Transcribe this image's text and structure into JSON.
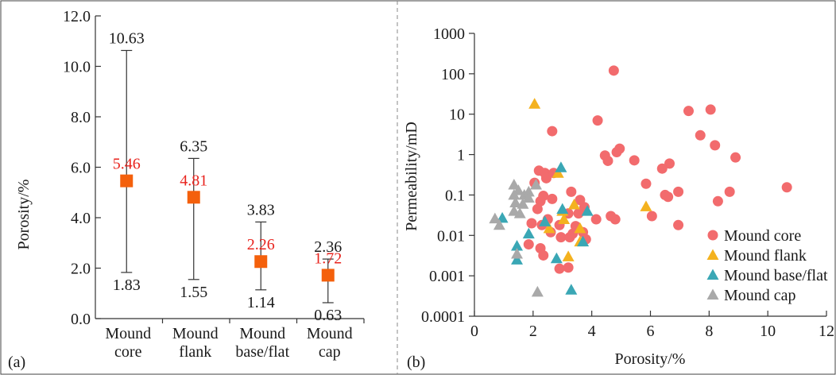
{
  "chart_data": [
    {
      "type": "range",
      "panel_label": "(a)",
      "xlabel": "",
      "ylabel": "Porosity/%",
      "ylim": [
        0,
        12
      ],
      "yticks": [
        "0.0",
        "2.0",
        "4.0",
        "6.0",
        "8.0",
        "10.0",
        "12.0"
      ],
      "categories": [
        {
          "line1": "Mound",
          "line2": "core"
        },
        {
          "line1": "Mound",
          "line2": "flank"
        },
        {
          "line1": "Mound",
          "line2": "base/flat"
        },
        {
          "line1": "Mound",
          "line2": "cap"
        }
      ],
      "max": [
        10.63,
        6.35,
        3.83,
        2.36
      ],
      "mean": [
        5.46,
        4.81,
        2.26,
        1.72
      ],
      "min": [
        1.83,
        1.55,
        1.14,
        0.63
      ],
      "max_labels": [
        "10.63",
        "6.35",
        "3.83",
        "2.36"
      ],
      "mean_labels": [
        "5.46",
        "4.81",
        "2.26",
        "1.72"
      ],
      "min_labels": [
        "1.83",
        "1.55",
        "1.14",
        "0.63"
      ],
      "colors": {
        "marker": "#f4600c",
        "mean_text": "#e8231d",
        "text": "#1a1a1a",
        "axis": "#333333"
      }
    },
    {
      "type": "scatter",
      "panel_label": "(b)",
      "xlabel": "Porosity/%",
      "ylabel": "Permeability/mD",
      "xlim": [
        0,
        12
      ],
      "ylim_log10": [
        -4,
        3
      ],
      "xticks": [
        "0",
        "2",
        "4",
        "6",
        "8",
        "10",
        "12"
      ],
      "yticks": [
        "0.0001",
        "0.001",
        "0.01",
        "0.1",
        "1",
        "10",
        "100",
        "1000"
      ],
      "legend_position": "bottom-right",
      "series": [
        {
          "name": "Mound core",
          "marker": "circle",
          "color": "#f26b6d",
          "points": [
            [
              4.75,
              120
            ],
            [
              2.65,
              3.8
            ],
            [
              4.2,
              7
            ],
            [
              7.3,
              12
            ],
            [
              8.05,
              13
            ],
            [
              7.7,
              3
            ],
            [
              8.2,
              1.7
            ],
            [
              8.9,
              0.85
            ],
            [
              4.95,
              1.4
            ],
            [
              4.85,
              1.15
            ],
            [
              4.45,
              0.95
            ],
            [
              4.55,
              0.7
            ],
            [
              5.45,
              0.72
            ],
            [
              6.65,
              0.6
            ],
            [
              6.4,
              0.45
            ],
            [
              5.85,
              0.19
            ],
            [
              6.5,
              0.1
            ],
            [
              6.6,
              0.09
            ],
            [
              6.95,
              0.12
            ],
            [
              8.7,
              0.12
            ],
            [
              8.3,
              0.07
            ],
            [
              10.65,
              0.155
            ],
            [
              6.05,
              0.03
            ],
            [
              6.95,
              0.018
            ],
            [
              4.65,
              0.03
            ],
            [
              4.8,
              0.025
            ],
            [
              4.15,
              0.025
            ],
            [
              3.75,
              0.05
            ],
            [
              3.55,
              0.035
            ],
            [
              3.3,
              0.12
            ],
            [
              3.6,
              0.075
            ],
            [
              2.2,
              0.4
            ],
            [
              2.4,
              0.35
            ],
            [
              2.45,
              0.26
            ],
            [
              2.7,
              0.35
            ],
            [
              2.05,
              0.2
            ],
            [
              2.35,
              0.095
            ],
            [
              2.25,
              0.07
            ],
            [
              2.65,
              0.08
            ],
            [
              2.5,
              0.025
            ],
            [
              2.15,
              0.045
            ],
            [
              1.95,
              0.02
            ],
            [
              2.3,
              0.018
            ],
            [
              2.6,
              0.012
            ],
            [
              2.9,
              0.018
            ],
            [
              3.2,
              0.035
            ],
            [
              3.45,
              0.017
            ],
            [
              3.7,
              0.012
            ],
            [
              2.95,
              0.009
            ],
            [
              3.25,
              0.009
            ],
            [
              3.35,
              0.011
            ],
            [
              3.8,
              0.008
            ],
            [
              1.85,
              0.006
            ],
            [
              2.25,
              0.0048
            ],
            [
              2.35,
              0.0032
            ],
            [
              2.9,
              0.0015
            ],
            [
              3.2,
              0.0016
            ]
          ]
        },
        {
          "name": "Mound flank",
          "marker": "triangle",
          "color": "#f4b21f",
          "points": [
            [
              2.05,
              18
            ],
            [
              2.85,
              0.35
            ],
            [
              3.4,
              0.058
            ],
            [
              3.0,
              0.04
            ],
            [
              3.6,
              0.015
            ],
            [
              3.6,
              0.007
            ],
            [
              3.05,
              0.025
            ],
            [
              2.55,
              0.015
            ],
            [
              3.2,
              0.003
            ],
            [
              5.85,
              0.052
            ]
          ]
        },
        {
          "name": "Mound base/flat",
          "marker": "triangle",
          "color": "#3aa7b5",
          "points": [
            [
              2.95,
              0.48
            ],
            [
              3.0,
              0.045
            ],
            [
              3.85,
              0.04
            ],
            [
              0.95,
              0.027
            ],
            [
              2.4,
              0.022
            ],
            [
              1.85,
              0.011
            ],
            [
              1.45,
              0.0055
            ],
            [
              1.45,
              0.0025
            ],
            [
              2.8,
              0.0027
            ],
            [
              3.7,
              0.007
            ],
            [
              3.3,
              0.00045
            ]
          ]
        },
        {
          "name": "Mound cap",
          "marker": "triangle",
          "color": "#a9a9a9",
          "points": [
            [
              1.35,
              0.18
            ],
            [
              1.5,
              0.13
            ],
            [
              1.7,
              0.1
            ],
            [
              1.35,
              0.1
            ],
            [
              2.1,
              0.18
            ],
            [
              1.85,
              0.12
            ],
            [
              1.65,
              0.06
            ],
            [
              1.4,
              0.065
            ],
            [
              1.35,
              0.04
            ],
            [
              1.55,
              0.035
            ],
            [
              1.85,
              0.085
            ],
            [
              0.7,
              0.026
            ],
            [
              0.85,
              0.018
            ],
            [
              1.45,
              0.0035
            ],
            [
              2.15,
              0.0004
            ]
          ]
        }
      ]
    }
  ]
}
